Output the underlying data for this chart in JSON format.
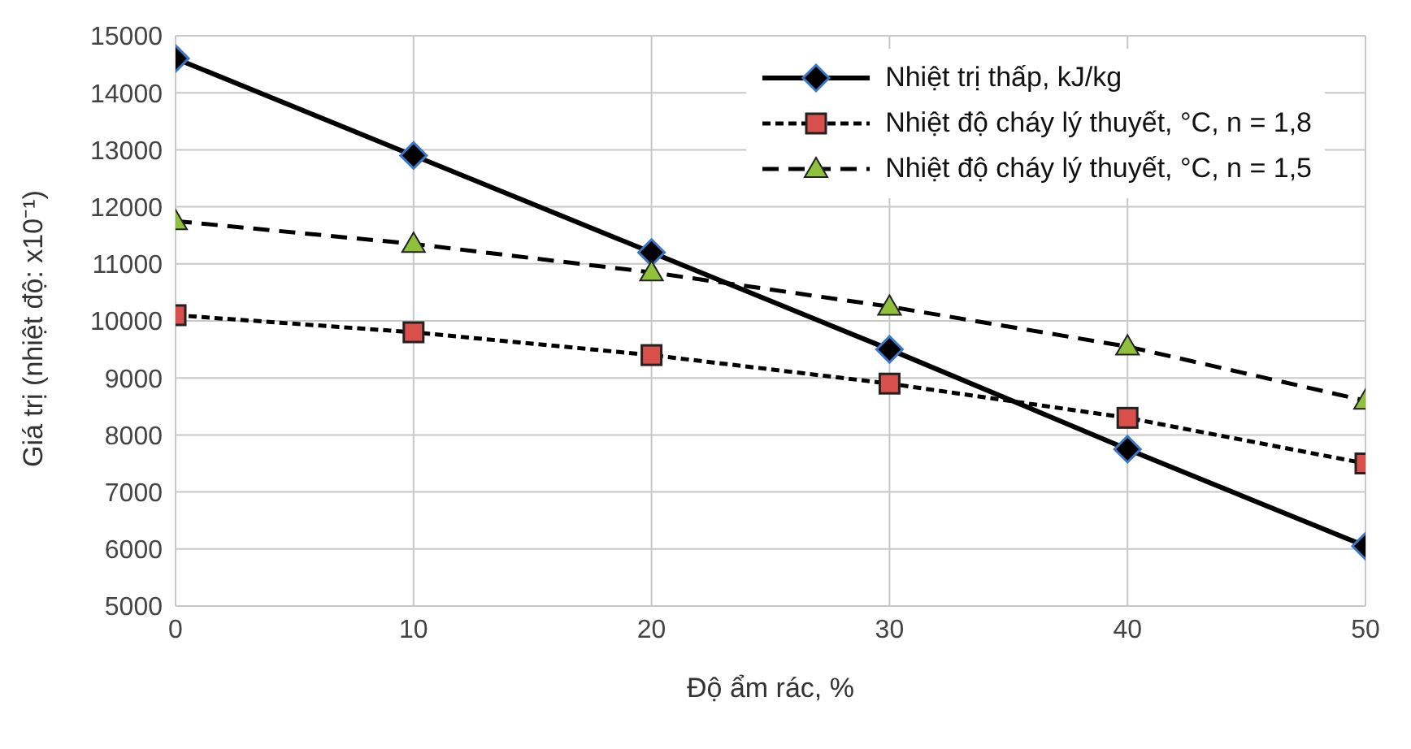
{
  "chart_data": {
    "type": "line",
    "xlabel": "Độ ẩm rác, %",
    "ylabel": "Giá trị (nhiệt độ: x10⁻¹)",
    "x": [
      0,
      10,
      20,
      30,
      40,
      50
    ],
    "series": [
      {
        "name": "Nhiệt trị thấp, kJ/kg",
        "color": "#000000",
        "values": [
          14600,
          12900,
          11200,
          9500,
          7750,
          6050
        ],
        "marker": "diamond",
        "line_style": "solid"
      },
      {
        "name": "Nhiệt độ cháy lý thuyết, °C, n = 1,8",
        "color": "#d9504a",
        "values": [
          10100,
          9800,
          9400,
          8900,
          8300,
          7500
        ],
        "marker": "square",
        "line_style": "dotted"
      },
      {
        "name": "Nhiệt độ cháy lý thuyết, °C, n = 1,5",
        "color": "#8fc23a",
        "values": [
          11750,
          11350,
          10850,
          10250,
          9550,
          8600
        ],
        "marker": "triangle",
        "line_style": "dashed"
      }
    ],
    "xlim": [
      0,
      50
    ],
    "xticks": [
      0,
      10,
      20,
      30,
      40,
      50
    ],
    "ylim": [
      5000,
      15000
    ],
    "yticks": [
      5000,
      6000,
      7000,
      8000,
      9000,
      10000,
      11000,
      12000,
      13000,
      14000,
      15000
    ],
    "grid": true,
    "legend": "top right"
  }
}
